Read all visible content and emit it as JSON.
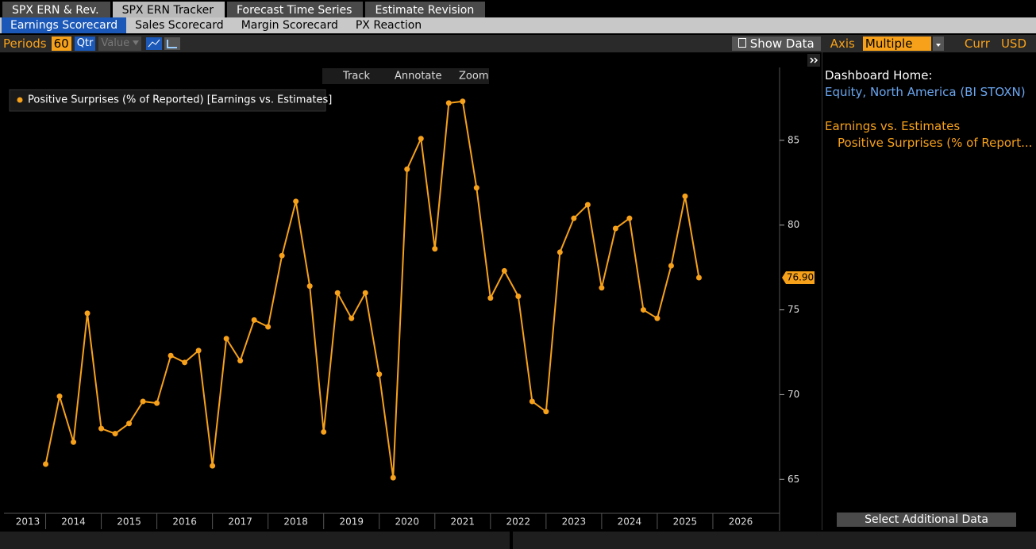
{
  "ui": {
    "tabs": [
      "SPX ERN & Rev.",
      "SPX ERN Tracker",
      "Forecast Time Series",
      "Estimate Revision"
    ],
    "subtabs": [
      "Earnings Scorecard",
      "Sales Scorecard",
      "Margin Scorecard",
      "PX Reaction"
    ],
    "toolbar": {
      "periods_label": "Periods",
      "periods": "60",
      "freq": "Qtr",
      "value": "Value",
      "show_data": "Show Data",
      "axis_label": "Axis",
      "axis": "Multiple",
      "curr_label": "Curr",
      "curr": "USD"
    },
    "chart_tools": [
      "Track",
      "Annotate",
      "Zoom"
    ],
    "panel": {
      "heading": "Dashboard Home:",
      "link": "Equity, North America (BI STOXN)",
      "group": "Earnings vs. Estimates",
      "item": "Positive Surprises (% of Report...",
      "button": "Select Additional Data"
    }
  },
  "chart_data": {
    "type": "line",
    "x": [
      2014,
      2014.25,
      2014.5,
      2014.75,
      2015,
      2015.25,
      2015.5,
      2015.75,
      2016,
      2016.25,
      2016.5,
      2016.75,
      2017,
      2017.25,
      2017.5,
      2017.75,
      2018,
      2018.25,
      2018.5,
      2018.75,
      2019,
      2019.25,
      2019.5,
      2019.75,
      2020,
      2020.25,
      2020.5,
      2020.75,
      2021,
      2021.25,
      2021.5,
      2021.75,
      2022,
      2022.25,
      2022.5,
      2022.75,
      2023,
      2023.25,
      2023.5,
      2023.75,
      2024,
      2024.25,
      2024.5,
      2024.75,
      2025,
      2025.25,
      2025.5,
      2025.75
    ],
    "series": [
      {
        "name": "Positive Surprises (% of Reported) [Earnings vs. Estimates]",
        "color": "#f7a11a",
        "values": [
          65.9,
          69.9,
          67.2,
          74.8,
          68.0,
          67.7,
          68.3,
          69.6,
          69.5,
          72.3,
          71.9,
          72.6,
          65.8,
          73.3,
          72.0,
          74.4,
          74.0,
          78.2,
          81.4,
          76.4,
          67.8,
          76.0,
          74.5,
          76.0,
          71.2,
          65.1,
          83.3,
          85.1,
          78.6,
          87.2,
          87.3,
          82.2,
          75.7,
          77.3,
          75.8,
          69.6,
          69.0,
          78.4,
          80.4,
          81.2,
          76.3,
          79.8,
          80.4,
          75.0,
          74.5,
          77.6,
          81.7,
          76.9
        ],
        "value_labels": [
          null,
          null,
          null,
          null,
          null,
          null,
          null,
          null,
          null,
          null,
          null,
          null,
          null,
          null,
          null,
          null,
          null,
          null,
          null,
          null,
          null,
          null,
          null,
          null,
          null,
          null,
          null,
          null,
          null,
          null,
          null,
          null,
          null,
          null,
          null,
          null,
          null,
          null,
          null,
          null,
          null,
          null,
          null,
          null,
          null,
          null,
          null,
          "76.90"
        ]
      }
    ],
    "xlim": [
      2013.25,
      2027.2
    ],
    "xticks": [
      2013,
      2014,
      2015,
      2016,
      2017,
      2018,
      2019,
      2020,
      2021,
      2022,
      2023,
      2024,
      2025,
      2026
    ],
    "ylim": [
      63.0,
      89.3
    ],
    "yticks": [
      65,
      70,
      75,
      80,
      85
    ],
    "grid": false
  }
}
